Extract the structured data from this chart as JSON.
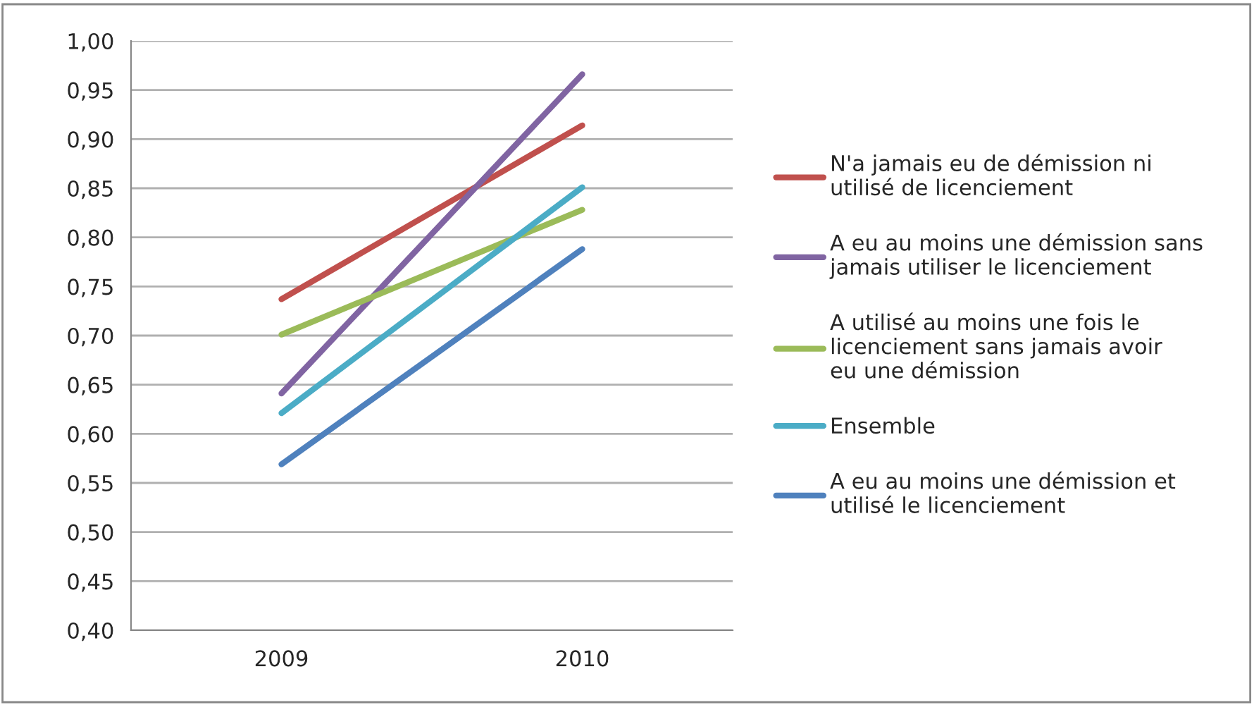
{
  "chart_data": {
    "type": "line",
    "categories": [
      "2009",
      "2010"
    ],
    "series": [
      {
        "name": "N'a jamais eu de démission ni utilisé de licenciement",
        "color": "#c0504d",
        "values": [
          0.737,
          0.914
        ]
      },
      {
        "name": "A eu au moins une démission sans jamais utiliser le licenciement",
        "color": "#8064a2",
        "values": [
          0.641,
          0.966
        ]
      },
      {
        "name": "A utilisé au moins une fois le licenciement sans jamais avoir eu une démission",
        "color": "#9bbb59",
        "values": [
          0.701,
          0.828
        ]
      },
      {
        "name": "Ensemble",
        "color": "#4bacc6",
        "values": [
          0.621,
          0.851
        ]
      },
      {
        "name": "A eu au moins une démission et utilisé le licenciement",
        "color": "#4f81bd",
        "values": [
          0.569,
          0.788
        ]
      }
    ],
    "ylim": [
      0.4,
      1.0
    ],
    "yticks": [
      {
        "value": 0.4,
        "label": "0,40"
      },
      {
        "value": 0.45,
        "label": "0,45"
      },
      {
        "value": 0.5,
        "label": "0,50"
      },
      {
        "value": 0.55,
        "label": "0,55"
      },
      {
        "value": 0.6,
        "label": "0,60"
      },
      {
        "value": 0.65,
        "label": "0,65"
      },
      {
        "value": 0.7,
        "label": "0,70"
      },
      {
        "value": 0.75,
        "label": "0,75"
      },
      {
        "value": 0.8,
        "label": "0,80"
      },
      {
        "value": 0.85,
        "label": "0,85"
      },
      {
        "value": 0.9,
        "label": "0,90"
      },
      {
        "value": 0.95,
        "label": "0,95"
      },
      {
        "value": 1.0,
        "label": "1,00"
      }
    ],
    "grid": "y",
    "legend": "right",
    "marker": "none",
    "line_style": "solid"
  }
}
